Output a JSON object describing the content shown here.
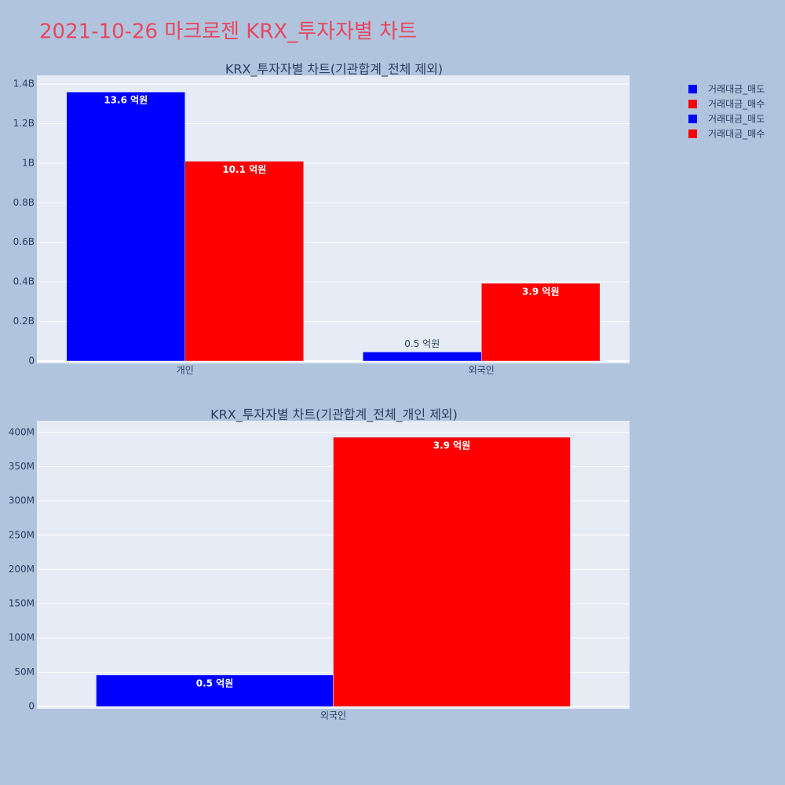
{
  "title": "2021-10-26 마크로젠 KRX_투자자별 차트",
  "chart_data": [
    {
      "type": "bar",
      "title": "KRX_투자자별 차트(기관합계_전체 제외)",
      "categories": [
        "개인",
        "외국인"
      ],
      "series": [
        {
          "name": "거래대금_매도",
          "color": "#0000ff",
          "values": [
            1360000000,
            46000000
          ],
          "value_labels": [
            "13.6 억원",
            "0.5 억원"
          ]
        },
        {
          "name": "거래대금_매수",
          "color": "#ff0000",
          "values": [
            1010000000,
            393000000
          ],
          "value_labels": [
            "10.1 억원",
            "3.9 억원"
          ]
        }
      ],
      "ylim": [
        -12000000,
        1444000000
      ],
      "yticks": [
        0,
        {
          "value": 200000000,
          "label": "0.2B"
        },
        {
          "value": 400000000,
          "label": "0.4B"
        },
        {
          "value": 600000000,
          "label": "0.6B"
        },
        {
          "value": 800000000,
          "label": "0.8B"
        },
        {
          "value": 1000000000,
          "label": "1B"
        },
        {
          "value": 1200000000,
          "label": "1.2B"
        },
        {
          "value": 1400000000,
          "label": "1.4B"
        }
      ],
      "grid": true
    },
    {
      "type": "bar",
      "title": "KRX_투자자별 차트(기관합계_전체_개인 제외)",
      "categories": [
        "외국인"
      ],
      "series": [
        {
          "name": "거래대금_매도",
          "color": "#0000ff",
          "values": [
            46000000
          ],
          "value_labels": [
            "0.5 억원"
          ]
        },
        {
          "name": "거래대금_매수",
          "color": "#ff0000",
          "values": [
            393000000
          ],
          "value_labels": [
            "3.9 억원"
          ]
        }
      ],
      "ylim": [
        -3400000,
        417000000
      ],
      "yticks": [
        0,
        {
          "value": 50000000,
          "label": "50M"
        },
        {
          "value": 100000000,
          "label": "100M"
        },
        {
          "value": 150000000,
          "label": "150M"
        },
        {
          "value": 200000000,
          "label": "200M"
        },
        {
          "value": 250000000,
          "label": "250M"
        },
        {
          "value": 300000000,
          "label": "300M"
        },
        {
          "value": 350000000,
          "label": "350M"
        },
        {
          "value": 400000000,
          "label": "400M"
        }
      ],
      "grid": true
    }
  ]
}
